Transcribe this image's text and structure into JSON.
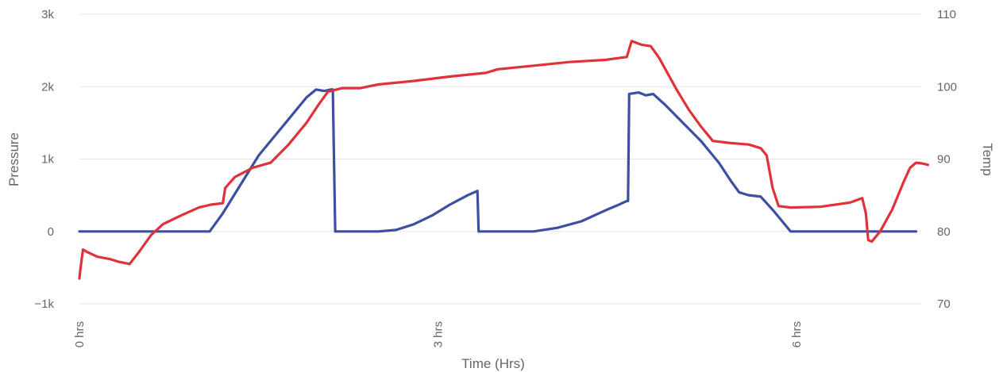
{
  "chart_data": {
    "type": "line",
    "title": "",
    "xlabel": "Time (Hrs)",
    "ylabel_left": "Pressure",
    "ylabel_right": "Temp",
    "x_unit": "hours",
    "xlim": [
      0,
      7
    ],
    "x_ticks": [
      {
        "value": 0,
        "label": "0 hrs"
      },
      {
        "value": 3,
        "label": "3 hrs"
      },
      {
        "value": 6,
        "label": "6 hrs"
      }
    ],
    "y_left_lim": [
      -1000,
      3000
    ],
    "y_left_ticks": [
      {
        "value": 3000,
        "label": "3k"
      },
      {
        "value": 2000,
        "label": "2k"
      },
      {
        "value": 1000,
        "label": "1k"
      },
      {
        "value": 0,
        "label": "0"
      },
      {
        "value": -1000,
        "label": "−1k"
      }
    ],
    "y_right_lim": [
      70,
      110
    ],
    "y_right_ticks": [
      {
        "value": 110,
        "label": "110"
      },
      {
        "value": 100,
        "label": "100"
      },
      {
        "value": 90,
        "label": "90"
      },
      {
        "value": 80,
        "label": "80"
      },
      {
        "value": 70,
        "label": "70"
      }
    ],
    "grid": true,
    "legend": "none",
    "series": [
      {
        "axis": "left",
        "color": "#3d4fa1",
        "points": [
          [
            0,
            0
          ],
          [
            1.09,
            0
          ],
          [
            1.2,
            250
          ],
          [
            1.35,
            650
          ],
          [
            1.5,
            1050
          ],
          [
            1.65,
            1350
          ],
          [
            1.8,
            1650
          ],
          [
            1.9,
            1850
          ],
          [
            1.98,
            1960
          ],
          [
            2.05,
            1940
          ],
          [
            2.1,
            1960
          ],
          [
            2.12,
            1960
          ],
          [
            2.14,
            0
          ],
          [
            2.2,
            0
          ],
          [
            2.5,
            0
          ],
          [
            2.65,
            20
          ],
          [
            2.8,
            100
          ],
          [
            2.95,
            220
          ],
          [
            3.1,
            370
          ],
          [
            3.25,
            500
          ],
          [
            3.33,
            560
          ],
          [
            3.34,
            0
          ],
          [
            3.5,
            0
          ],
          [
            3.8,
            0
          ],
          [
            4.0,
            50
          ],
          [
            4.2,
            140
          ],
          [
            4.4,
            290
          ],
          [
            4.5,
            360
          ],
          [
            4.58,
            420
          ],
          [
            4.59,
            420
          ],
          [
            4.6,
            1900
          ],
          [
            4.68,
            1920
          ],
          [
            4.74,
            1880
          ],
          [
            4.8,
            1900
          ],
          [
            4.9,
            1750
          ],
          [
            5.05,
            1500
          ],
          [
            5.2,
            1250
          ],
          [
            5.35,
            950
          ],
          [
            5.45,
            700
          ],
          [
            5.52,
            540
          ],
          [
            5.6,
            500
          ],
          [
            5.7,
            480
          ],
          [
            5.8,
            300
          ],
          [
            5.9,
            100
          ],
          [
            5.95,
            0
          ],
          [
            7.0,
            0
          ]
        ]
      },
      {
        "axis": "right",
        "color": "#e0323a",
        "points": [
          [
            0,
            73.5
          ],
          [
            0.01,
            75
          ],
          [
            0.03,
            77.5
          ],
          [
            0.06,
            77.2
          ],
          [
            0.15,
            76.5
          ],
          [
            0.25,
            76.2
          ],
          [
            0.33,
            75.8
          ],
          [
            0.42,
            75.5
          ],
          [
            0.5,
            77.2
          ],
          [
            0.6,
            79.5
          ],
          [
            0.7,
            81
          ],
          [
            0.85,
            82.2
          ],
          [
            1.0,
            83.3
          ],
          [
            1.1,
            83.7
          ],
          [
            1.2,
            83.9
          ],
          [
            1.22,
            86
          ],
          [
            1.3,
            87.5
          ],
          [
            1.45,
            88.8
          ],
          [
            1.6,
            89.5
          ],
          [
            1.75,
            92
          ],
          [
            1.9,
            95
          ],
          [
            2.0,
            97.5
          ],
          [
            2.08,
            99.3
          ],
          [
            2.2,
            99.8
          ],
          [
            2.35,
            99.8
          ],
          [
            2.5,
            100.3
          ],
          [
            2.8,
            100.8
          ],
          [
            3.1,
            101.4
          ],
          [
            3.4,
            101.9
          ],
          [
            3.5,
            102.4
          ],
          [
            3.8,
            102.9
          ],
          [
            4.1,
            103.4
          ],
          [
            4.4,
            103.7
          ],
          [
            4.58,
            104.1
          ],
          [
            4.62,
            106.3
          ],
          [
            4.7,
            105.8
          ],
          [
            4.78,
            105.6
          ],
          [
            4.85,
            104
          ],
          [
            5.0,
            99.5
          ],
          [
            5.1,
            96.8
          ],
          [
            5.2,
            94.5
          ],
          [
            5.3,
            92.5
          ],
          [
            5.45,
            92.2
          ],
          [
            5.6,
            92
          ],
          [
            5.7,
            91.5
          ],
          [
            5.75,
            90.5
          ],
          [
            5.8,
            86
          ],
          [
            5.85,
            83.5
          ],
          [
            5.95,
            83.3
          ],
          [
            6.2,
            83.4
          ],
          [
            6.45,
            84
          ],
          [
            6.55,
            84.6
          ],
          [
            6.58,
            82.5
          ],
          [
            6.6,
            78.8
          ],
          [
            6.63,
            78.6
          ],
          [
            6.7,
            80
          ],
          [
            6.8,
            83
          ],
          [
            6.9,
            87
          ],
          [
            6.95,
            88.8
          ],
          [
            7.0,
            89.5
          ],
          [
            7.05,
            89.4
          ],
          [
            7.1,
            89.2
          ]
        ]
      }
    ]
  }
}
